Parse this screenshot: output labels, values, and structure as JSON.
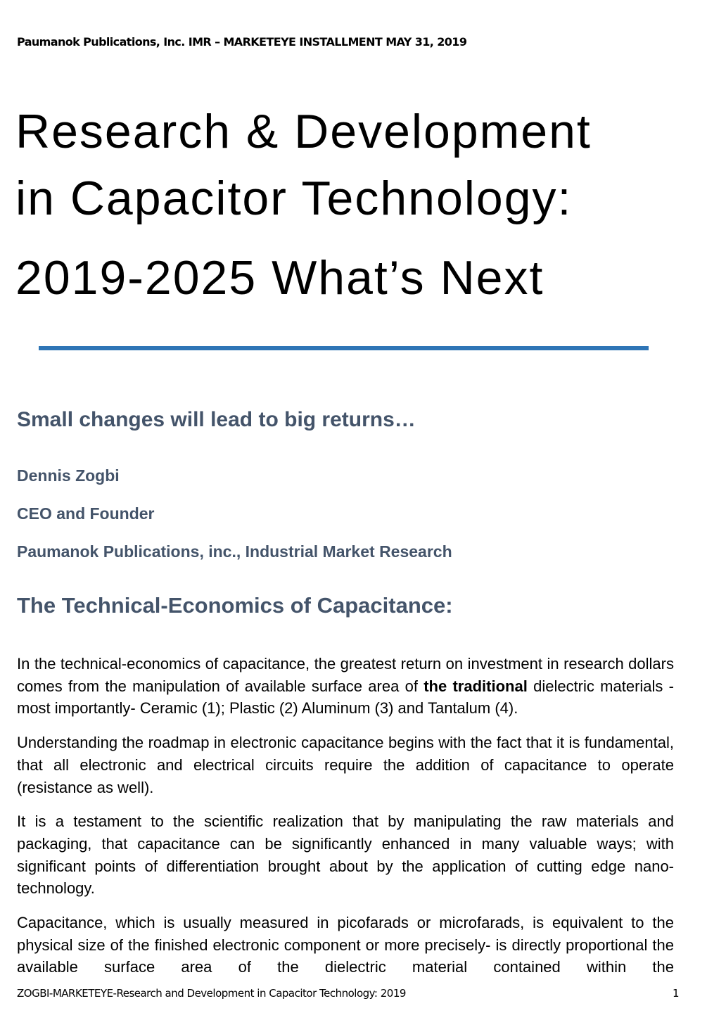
{
  "header": {
    "text": "Paumanok Publications, Inc. IMR – MARKETEYE INSTALLMENT MAY 31, 2019"
  },
  "title": {
    "lines": [
      "Research & Development",
      "in Capacitor Technology:",
      "2019-2025 What’s Next"
    ]
  },
  "accent_color": "#2E75B6",
  "heading_color": "#44546A",
  "subtitle": "Small changes will lead to big returns…",
  "author": {
    "name": "Dennis Zogbi",
    "role": "CEO and Founder",
    "org": "Paumanok Publications, inc., Industrial Market Research"
  },
  "section_heading": "The Technical-Economics of Capacitance:",
  "paragraphs": {
    "p1": {
      "before": "In the technical-economics of capacitance, the greatest return on investment in research dollars comes from the manipulation of available surface area of ",
      "bold": "the traditional",
      "after": " dielectric materials -most importantly- Ceramic (1); Plastic (2) Aluminum (3) and Tantalum (4)."
    },
    "p2": "Understanding the roadmap in electronic capacitance begins with the fact that it is fundamental, that all electronic and electrical circuits require the addition of capacitance to operate (resistance as well).",
    "p3": "It is a testament to the scientific realization that by manipulating the raw materials and packaging, that capacitance can be significantly enhanced in many valuable ways; with significant points of differentiation brought about by the application of cutting edge nano-technology.",
    "p4": "Capacitance, which is usually measured in picofarads or microfarads, is equivalent to the physical size of the finished electronic component or more precisely- is directly proportional the available surface area of the dielectric material contained within the"
  },
  "footer": {
    "text": "ZOGBI-MARKETEYE-Research and Development in Capacitor Technology: 2019",
    "page_number": "1"
  }
}
